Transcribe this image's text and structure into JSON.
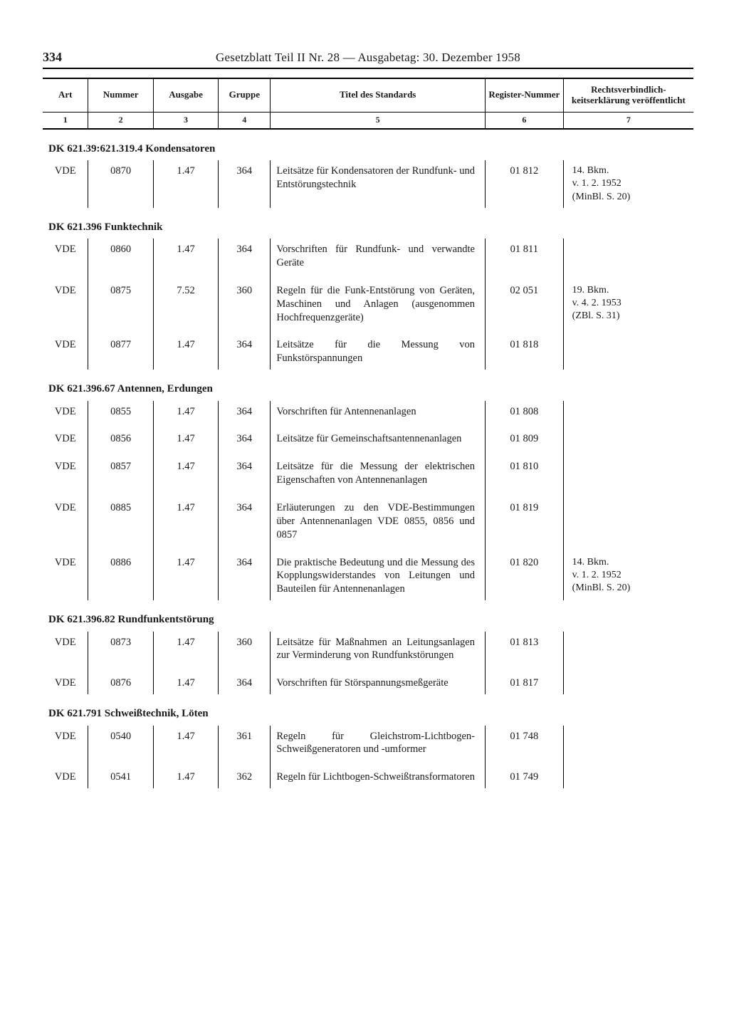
{
  "page_number": "334",
  "header": "Gesetzblatt Teil II Nr. 28 — Ausgabetag: 30. Dezember 1958",
  "columns": {
    "headers": [
      "Art",
      "Nummer",
      "Ausgabe",
      "Gruppe",
      "Titel des Standards",
      "Register-Nummer",
      "Rechtsverbindlich-keitserklärung veröffentlicht"
    ],
    "numbers": [
      "1",
      "2",
      "3",
      "4",
      "5",
      "6",
      "7"
    ]
  },
  "sections": [
    {
      "heading": "DK 621.39:621.319.4 Kondensatoren",
      "rows": [
        {
          "art": "VDE",
          "num": "0870",
          "ausg": "1.47",
          "grp": "364",
          "title": "Leitsätze für Kondensatoren der Rundfunk- und Entstörungstechnik",
          "reg": "01 812",
          "legal": "14. Bkm.\nv. 1. 2. 1952\n(MinBl. S. 20)"
        }
      ]
    },
    {
      "heading": "DK 621.396 Funktechnik",
      "rows": [
        {
          "art": "VDE",
          "num": "0860",
          "ausg": "1.47",
          "grp": "364",
          "title": "Vorschriften für Rundfunk- und verwandte Geräte",
          "reg": "01 811",
          "legal": ""
        },
        {
          "art": "VDE",
          "num": "0875",
          "ausg": "7.52",
          "grp": "360",
          "title": "Regeln für die Funk-Entstörung von Geräten, Maschinen und Anlagen (ausgenommen Hochfrequenzgeräte)",
          "reg": "02 051",
          "legal": "19. Bkm.\nv. 4. 2. 1953\n(ZBl. S. 31)"
        },
        {
          "art": "VDE",
          "num": "0877",
          "ausg": "1.47",
          "grp": "364",
          "title": "Leitsätze für die Messung von Funkstörspannungen",
          "reg": "01 818",
          "legal": ""
        }
      ]
    },
    {
      "heading": "DK 621.396.67 Antennen, Erdungen",
      "rows": [
        {
          "art": "VDE",
          "num": "0855",
          "ausg": "1.47",
          "grp": "364",
          "title": "Vorschriften für Antennenanlagen",
          "reg": "01 808",
          "legal": ""
        },
        {
          "art": "VDE",
          "num": "0856",
          "ausg": "1.47",
          "grp": "364",
          "title": "Leitsätze für Gemeinschaftsantennenanlagen",
          "reg": "01 809",
          "legal": ""
        },
        {
          "art": "VDE",
          "num": "0857",
          "ausg": "1.47",
          "grp": "364",
          "title": "Leitsätze für die Messung der elektrischen Eigenschaften von Antennenanlagen",
          "reg": "01 810",
          "legal": ""
        },
        {
          "art": "VDE",
          "num": "0885",
          "ausg": "1.47",
          "grp": "364",
          "title": "Erläuterungen zu den VDE-Bestimmungen über Antennenanlagen VDE 0855, 0856 und 0857",
          "reg": "01 819",
          "legal": ""
        },
        {
          "art": "VDE",
          "num": "0886",
          "ausg": "1.47",
          "grp": "364",
          "title": "Die praktische Bedeutung und die Messung des Kopplungswiderstandes von Leitungen und Bauteilen für Antennenanlagen",
          "reg": "01 820",
          "legal": "14. Bkm.\nv. 1. 2. 1952\n(MinBl. S. 20)"
        }
      ]
    },
    {
      "heading": "DK 621.396.82 Rundfunkentstörung",
      "rows": [
        {
          "art": "VDE",
          "num": "0873",
          "ausg": "1.47",
          "grp": "360",
          "title": "Leitsätze für Maßnahmen an Leitungsanlagen zur Verminderung von Rundfunkstörungen",
          "reg": "01 813",
          "legal": ""
        },
        {
          "art": "VDE",
          "num": "0876",
          "ausg": "1.47",
          "grp": "364",
          "title": "Vorschriften für Störspannungsmeßgeräte",
          "reg": "01 817",
          "legal": ""
        }
      ]
    },
    {
      "heading": "DK 621.791 Schweißtechnik, Löten",
      "rows": [
        {
          "art": "VDE",
          "num": "0540",
          "ausg": "1.47",
          "grp": "361",
          "title": "Regeln für Gleichstrom-Lichtbogen-Schweißgeneratoren und -umformer",
          "reg": "01 748",
          "legal": ""
        },
        {
          "art": "VDE",
          "num": "0541",
          "ausg": "1.47",
          "grp": "362",
          "title": "Regeln für Lichtbogen-Schweißtransformatoren",
          "reg": "01 749",
          "legal": ""
        }
      ]
    }
  ]
}
